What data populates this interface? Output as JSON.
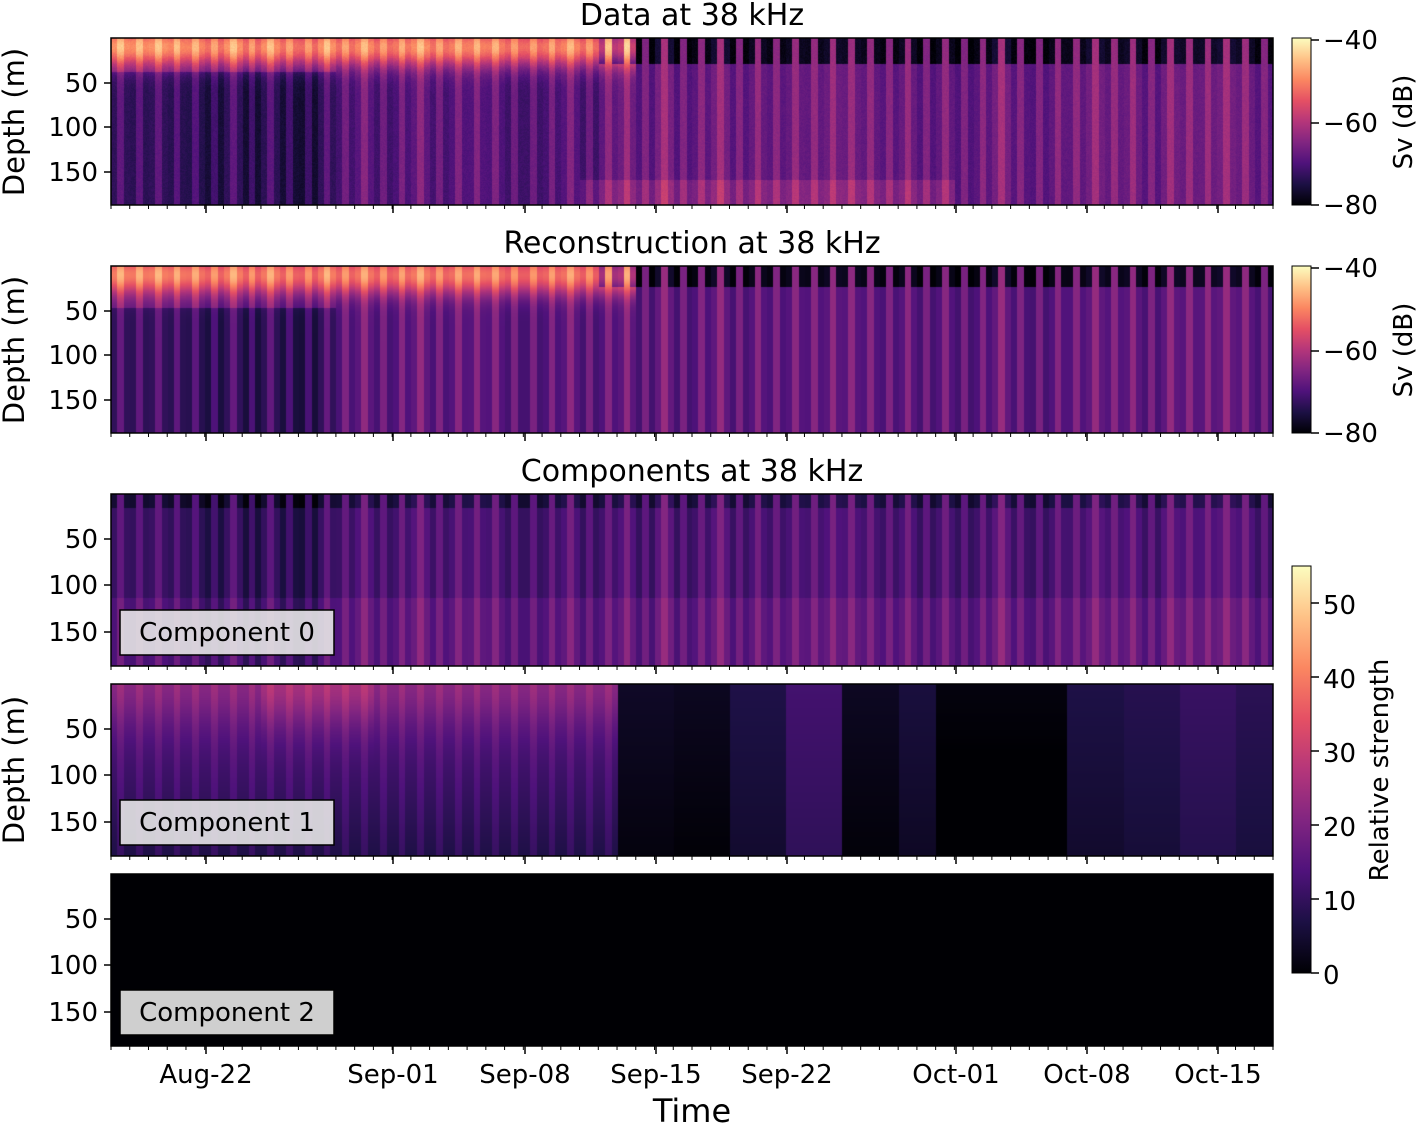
{
  "chart_data": [
    {
      "type": "heatmap",
      "title": "Data at 38 kHz",
      "ylabel": "Depth (m)",
      "xlabel": "",
      "y_ticks": [
        50,
        100,
        150
      ],
      "ylim": [
        190,
        2
      ],
      "colorbar": {
        "label": "Sv (dB)",
        "ticks": [
          "−40",
          "−60",
          "−80"
        ],
        "range": [
          -80,
          -40
        ]
      },
      "colormap": "magma",
      "pattern": "data"
    },
    {
      "type": "heatmap",
      "title": "Reconstruction at 38 kHz",
      "ylabel": "Depth (m)",
      "xlabel": "",
      "y_ticks": [
        50,
        100,
        150
      ],
      "ylim": [
        190,
        2
      ],
      "colorbar": {
        "label": "Sv (dB)",
        "ticks": [
          "−40",
          "−60",
          "−80"
        ],
        "range": [
          -80,
          -40
        ]
      },
      "colormap": "magma",
      "pattern": "recon"
    },
    {
      "type": "heatmap",
      "title": "Components at 38 kHz",
      "ylabel": "",
      "xlabel": "",
      "y_ticks": [
        50,
        100,
        150
      ],
      "ylim": [
        190,
        2
      ],
      "label_box": "Component 0",
      "colormap": "magma",
      "pattern": "comp0"
    },
    {
      "type": "heatmap",
      "title": "",
      "ylabel": "Depth (m)",
      "xlabel": "",
      "y_ticks": [
        50,
        100,
        150
      ],
      "ylim": [
        190,
        2
      ],
      "label_box": "Component 1",
      "colormap": "magma",
      "pattern": "comp1"
    },
    {
      "type": "heatmap",
      "title": "",
      "ylabel": "",
      "xlabel": "Time",
      "y_ticks": [
        50,
        100,
        150
      ],
      "ylim": [
        190,
        2
      ],
      "label_box": "Component 2",
      "colormap": "magma",
      "pattern": "comp2",
      "x_ticks": [
        "Aug-22",
        "Sep-01",
        "Sep-08",
        "Sep-15",
        "Sep-22",
        "Oct-01",
        "Oct-08",
        "Oct-15"
      ]
    }
  ],
  "shared_x_axis": {
    "label": "Time",
    "ticks": [
      "Aug-22",
      "Sep-01",
      "Sep-08",
      "Sep-15",
      "Sep-22",
      "Oct-01",
      "Oct-08",
      "Oct-15"
    ],
    "range": [
      "Aug-17",
      "Oct-18"
    ]
  },
  "components_colorbar": {
    "label": "Relative strength",
    "ticks": [
      "0",
      "10",
      "20",
      "30",
      "40",
      "50"
    ],
    "range": [
      0,
      55
    ],
    "colormap": "magma"
  }
}
